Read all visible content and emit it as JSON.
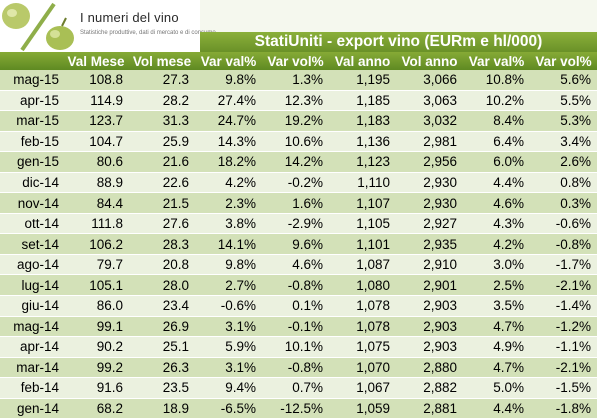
{
  "logo": {
    "title": "I numeri del vino",
    "subtitle": "Statistiche produttive, dati di mercato e di consumo"
  },
  "title": "StatiUniti - export vino (EURm e hl/000)",
  "colors": {
    "header": "#6f9a2a",
    "row_alt": "#d3e1b8",
    "row_base": "#ebf1df"
  },
  "table": {
    "columns": [
      "",
      "Val Mese",
      "Vol mese",
      "Var val%",
      "Var vol%",
      "Val anno",
      "Vol anno",
      "Var val%",
      "Var vol%"
    ],
    "rows": [
      [
        "mag-15",
        "108.8",
        "27.3",
        "9.8%",
        "1.3%",
        "1,195",
        "3,066",
        "10.8%",
        "5.6%"
      ],
      [
        "apr-15",
        "114.9",
        "28.2",
        "27.4%",
        "12.3%",
        "1,185",
        "3,063",
        "10.2%",
        "5.5%"
      ],
      [
        "mar-15",
        "123.7",
        "31.3",
        "24.7%",
        "19.2%",
        "1,183",
        "3,032",
        "8.4%",
        "5.3%"
      ],
      [
        "feb-15",
        "104.7",
        "25.9",
        "14.3%",
        "10.6%",
        "1,136",
        "2,981",
        "6.4%",
        "3.4%"
      ],
      [
        "gen-15",
        "80.6",
        "21.6",
        "18.2%",
        "14.2%",
        "1,123",
        "2,956",
        "6.0%",
        "2.6%"
      ],
      [
        "dic-14",
        "88.9",
        "22.6",
        "4.2%",
        "-0.2%",
        "1,110",
        "2,930",
        "4.4%",
        "0.8%"
      ],
      [
        "nov-14",
        "84.4",
        "21.5",
        "2.3%",
        "1.6%",
        "1,107",
        "2,930",
        "4.6%",
        "0.3%"
      ],
      [
        "ott-14",
        "111.8",
        "27.6",
        "3.8%",
        "-2.9%",
        "1,105",
        "2,927",
        "4.3%",
        "-0.6%"
      ],
      [
        "set-14",
        "106.2",
        "28.3",
        "14.1%",
        "9.6%",
        "1,101",
        "2,935",
        "4.2%",
        "-0.8%"
      ],
      [
        "ago-14",
        "79.7",
        "20.8",
        "9.8%",
        "4.6%",
        "1,087",
        "2,910",
        "3.0%",
        "-1.7%"
      ],
      [
        "lug-14",
        "105.1",
        "28.0",
        "2.7%",
        "-0.8%",
        "1,080",
        "2,901",
        "2.5%",
        "-2.1%"
      ],
      [
        "giu-14",
        "86.0",
        "23.4",
        "-0.6%",
        "0.1%",
        "1,078",
        "2,903",
        "3.5%",
        "-1.4%"
      ],
      [
        "mag-14",
        "99.1",
        "26.9",
        "3.1%",
        "-0.1%",
        "1,078",
        "2,903",
        "4.7%",
        "-1.2%"
      ],
      [
        "apr-14",
        "90.2",
        "25.1",
        "5.9%",
        "10.1%",
        "1,075",
        "2,903",
        "4.9%",
        "-1.1%"
      ],
      [
        "mar-14",
        "99.2",
        "26.3",
        "3.1%",
        "-0.8%",
        "1,070",
        "2,880",
        "4.7%",
        "-2.1%"
      ],
      [
        "feb-14",
        "91.6",
        "23.5",
        "9.4%",
        "0.7%",
        "1,067",
        "2,882",
        "5.0%",
        "-1.5%"
      ],
      [
        "gen-14",
        "68.2",
        "18.9",
        "-6.5%",
        "-12.5%",
        "1,059",
        "2,881",
        "4.4%",
        "-1.8%"
      ]
    ]
  }
}
